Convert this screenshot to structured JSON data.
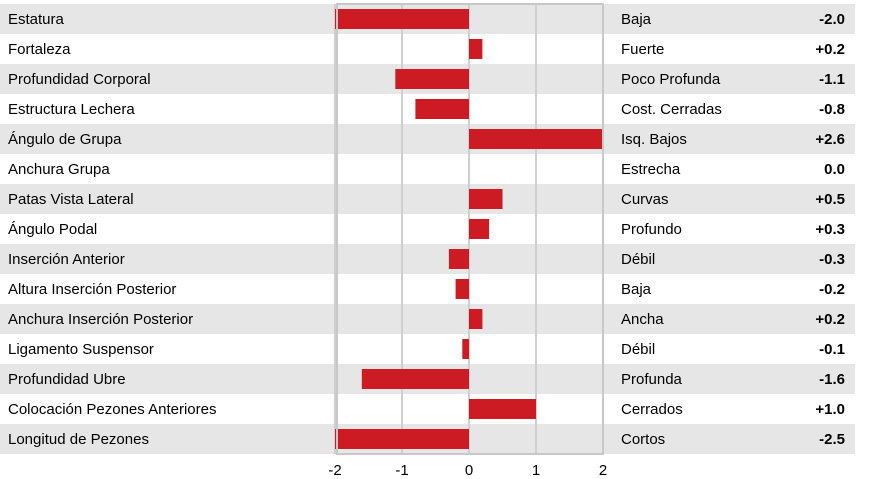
{
  "chart_data": {
    "type": "bar",
    "orientation": "horizontal",
    "categories": [
      "Estatura",
      "Fortaleza",
      "Profundidad Corporal",
      "Estructura Lechera",
      "Ángulo de Grupa",
      "Anchura Grupa",
      "Patas Vista Lateral",
      "Ángulo Podal",
      "Inserción Anterior",
      "Altura Inserción Posterior",
      "Anchura Inserción Posterior",
      "Ligamento Suspensor",
      "Profundidad Ubre",
      "Colocación Pezones Anteriores",
      "Longitud de Pezones"
    ],
    "values": [
      -2.0,
      0.2,
      -1.1,
      -0.8,
      2.6,
      0.0,
      0.5,
      0.3,
      -0.3,
      -0.2,
      0.2,
      -0.1,
      -1.6,
      1.0,
      -2.5
    ],
    "descriptors": [
      "Baja",
      "Fuerte",
      "Poco Profunda",
      "Cost. Cerradas",
      "Isq. Bajos",
      "Estrecha",
      "Curvas",
      "Profundo",
      "Débil",
      "Baja",
      "Ancha",
      "Débil",
      "Profunda",
      "Cerrados",
      "Cortos"
    ],
    "value_labels": [
      "-2.0",
      "+0.2",
      "-1.1",
      "-0.8",
      "+2.6",
      "0.0",
      "+0.5",
      "+0.3",
      "-0.3",
      "-0.2",
      "+0.2",
      "-0.1",
      "-1.6",
      "+1.0",
      "-2.5"
    ],
    "xlim": [
      -2,
      2
    ],
    "xticks": [
      "-2",
      "-1",
      "0",
      "1",
      "2"
    ],
    "clip_to_axis": true,
    "grid": true,
    "title": "",
    "xlabel": "",
    "ylabel": "",
    "colors": {
      "bar": "#cc1b22",
      "stripe": "#e6e6e6",
      "grid": "#cfcfcf",
      "frame": "#c8c8c8"
    }
  }
}
